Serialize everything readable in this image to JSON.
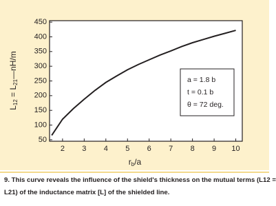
{
  "chart_data": {
    "type": "line",
    "xlabel": [
      "r",
      "b",
      "/a"
    ],
    "ylabel": [
      "L",
      "12",
      " = L",
      "21",
      "—nH/m"
    ],
    "x": [
      1.5,
      2,
      2.5,
      3,
      3.5,
      4,
      4.5,
      5,
      5.5,
      6,
      6.5,
      7,
      7.5,
      8,
      8.5,
      9,
      9.5,
      10
    ],
    "series": [
      {
        "color": "#231f20",
        "values": [
          65,
          120,
          156,
          188,
          218,
          245,
          267,
          288,
          306,
          322,
          338,
          352,
          367,
          380,
          391,
          402,
          412,
          422
        ]
      }
    ],
    "xlim": [
      1.4,
      10.3
    ],
    "xticks": [
      2,
      3,
      4,
      5,
      6,
      7,
      8,
      9,
      10
    ],
    "ylim": [
      45,
      455
    ],
    "yticks": [
      50,
      100,
      150,
      200,
      250,
      300,
      350,
      400,
      450
    ],
    "annotation": [
      "a = 1.8 b",
      "t = 0.1 b",
      "θ = 72 deg."
    ]
  },
  "caption": [
    "9. This curve reveals the influence of the shield's thickness on the mutual terms (L12 =",
    "L21) of the inductance matrix [L] of the shielded line."
  ]
}
